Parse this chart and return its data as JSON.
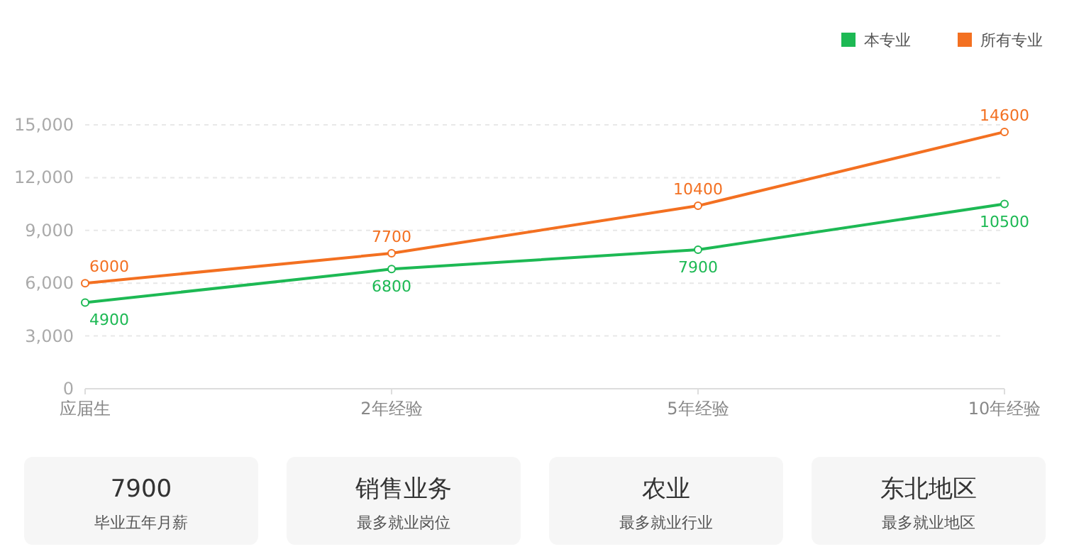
{
  "chart_data": [
    {
      "type": "line",
      "categories": [
        "应届生",
        "2年经验",
        "5年经验",
        "10年经验"
      ],
      "series": [
        {
          "name": "本专业",
          "color": "#1db954",
          "values": [
            4900,
            6800,
            7900,
            10500
          ]
        },
        {
          "name": "所有专业",
          "color": "#f37021",
          "values": [
            6000,
            7700,
            10400,
            14600
          ]
        }
      ],
      "ylim": [
        0,
        15000
      ],
      "yticks": [
        0,
        {
          "value": 3000,
          "label": "3,000"
        },
        {
          "value": 6000,
          "label": "6,000"
        },
        {
          "value": 9000,
          "label": "9,000"
        },
        {
          "value": 12000,
          "label": "12,000"
        },
        {
          "value": 15000,
          "label": "15,000"
        }
      ],
      "grid": "y",
      "legend": "top right",
      "marker": "circle",
      "line_style": "solid",
      "data_labels": true
    },
    {
      "type": "other",
      "annotations": [
        "7900",
        "毕业五年月薪",
        "销售业务",
        "最多就业岗位",
        "农业",
        "最多就业行业",
        "东北地区",
        "最多就业地区"
      ]
    }
  ]
}
